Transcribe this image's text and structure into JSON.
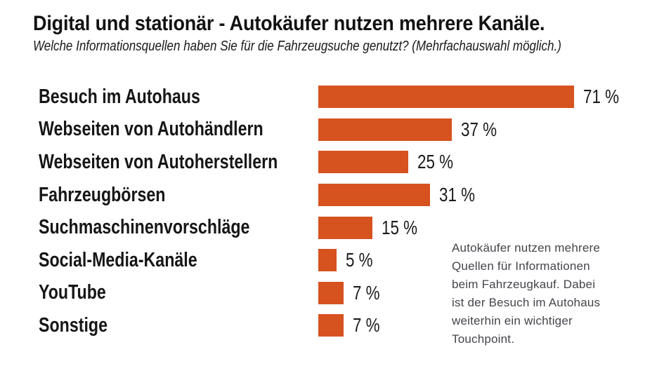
{
  "chart_data": {
    "type": "bar",
    "orientation": "horizontal",
    "title": "Digital und stationär - Autokäufer nutzen mehrere Kanäle.",
    "subtitle": "Welche Informationsquellen haben Sie für die Fahrzeugsuche genutzt? (Mehrfachauswahl möglich.)",
    "categories": [
      "Besuch im Autohaus",
      "Webseiten von Autohändlern",
      "Webseiten von Autoherstellern",
      "Fahrzeugbörsen",
      "Suchmaschinenvorschläge",
      "Social-Media-Kanäle",
      "YouTube",
      "Sonstige"
    ],
    "values": [
      71,
      37,
      25,
      31,
      15,
      5,
      7,
      7
    ],
    "value_labels": [
      "71 %",
      "37 %",
      "25 %",
      "31 %",
      "15 %",
      "5 %",
      "7 %",
      "7 %"
    ],
    "unit": "%",
    "xlim": [
      0,
      100
    ],
    "grid": false,
    "legend": "none",
    "bar_color": "#D6521F",
    "annotation": "Autokäufer nutzen mehrere\nQuellen für Informationen\nbeim Fahrzeugkauf. Dabei\nist der Besuch im Autohaus\nweiterhin ein wichtiger\nTouchpoint."
  }
}
